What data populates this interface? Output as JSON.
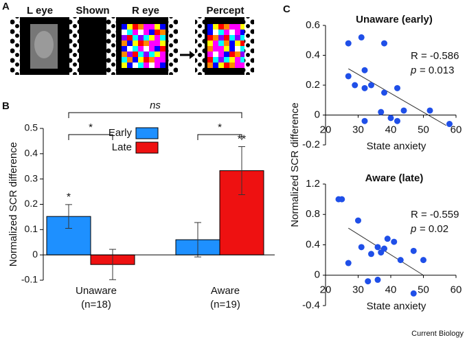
{
  "panel_labels": [
    "A",
    "B",
    "C"
  ],
  "panel_a": {
    "labels": [
      "L eye",
      "Shown",
      "R eye",
      "Percept"
    ]
  },
  "chart_data": [
    {
      "type": "bar",
      "categories": [
        "Unaware",
        "Aware"
      ],
      "category_notes": [
        "(n=18)",
        "(n=19)"
      ],
      "ylabel": "Normalized SCR difference",
      "ylim": [
        -0.1,
        0.5
      ],
      "yticks": [
        -0.1,
        0,
        0.1,
        0.2,
        0.3,
        0.4,
        0.5
      ],
      "legend": "top",
      "series": [
        {
          "name": "Early",
          "color": "#1e90ff",
          "values": [
            0.152,
            0.06
          ],
          "errors": [
            0.047,
            0.068
          ],
          "sig_labels": [
            "*",
            null
          ]
        },
        {
          "name": "Late",
          "color": "#ee1111",
          "values": [
            -0.038,
            0.333
          ],
          "errors": [
            0.06,
            0.095
          ],
          "sig_labels": [
            null,
            "**"
          ]
        }
      ],
      "brackets": [
        "*",
        "*",
        "ns"
      ]
    },
    {
      "type": "scatter",
      "title": "Unaware (early)",
      "xlabel": "State anxiety",
      "ylabel": "Normalized SCR difference",
      "x": [
        27,
        31,
        38,
        27,
        29,
        32,
        32,
        34,
        42,
        37,
        40,
        42,
        38,
        44,
        32,
        52,
        58
      ],
      "y": [
        0.48,
        0.52,
        0.48,
        0.26,
        0.2,
        0.18,
        0.3,
        0.2,
        0.18,
        0.02,
        -0.02,
        -0.04,
        0.15,
        0.03,
        -0.04,
        0.03,
        -0.06
      ],
      "color": "#1f4fe8",
      "xlim": [
        20,
        60
      ],
      "ylim": [
        -0.2,
        0.6
      ],
      "xticks": [
        20,
        30,
        40,
        50,
        60
      ],
      "yticks": [
        -0.2,
        0,
        0.2,
        0.4,
        0.6
      ],
      "fit": {
        "x": [
          27,
          57
        ],
        "y": [
          0.31,
          -0.07
        ]
      },
      "stats": {
        "r": "R = -0.586",
        "p_symbol": "p",
        "p_value": "= 0.013"
      }
    },
    {
      "type": "scatter",
      "title": "Aware (late)",
      "xlabel": "State anxiety",
      "x": [
        24,
        25,
        30,
        31,
        34,
        37,
        38,
        39,
        41,
        36,
        27,
        33,
        36,
        43,
        47,
        50,
        47
      ],
      "y": [
        1.0,
        1.0,
        0.72,
        0.37,
        0.28,
        0.3,
        0.35,
        0.48,
        0.44,
        0.37,
        0.16,
        -0.08,
        -0.06,
        0.2,
        0.32,
        0.2,
        -0.24
      ],
      "color": "#1f4fe8",
      "xlim": [
        20,
        60
      ],
      "ylim": [
        -0.4,
        1.2
      ],
      "xticks": [
        20,
        30,
        40,
        50,
        60
      ],
      "yticks": [
        -0.4,
        0,
        0.4,
        0.8,
        1.2
      ],
      "fit": {
        "x": [
          27,
          50
        ],
        "y": [
          0.62,
          0.0
        ]
      },
      "stats": {
        "r": "R = -0.559",
        "p_symbol": "p",
        "p_value": "= 0.02"
      }
    }
  ],
  "credit": "Current Biology"
}
